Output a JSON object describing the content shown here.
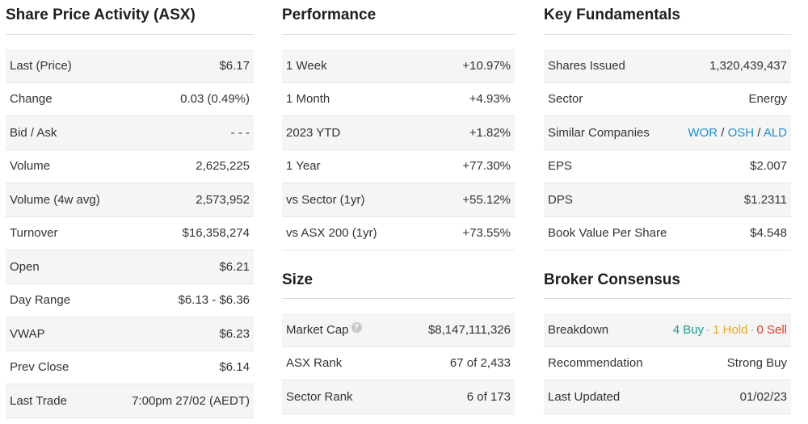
{
  "share_price": {
    "title": "Share Price Activity (ASX)",
    "rows": [
      {
        "label": "Last (Price)",
        "value": "$6.17"
      },
      {
        "label": "Change",
        "value": "0.03 (0.49%)"
      },
      {
        "label": "Bid / Ask",
        "value": "- - -"
      },
      {
        "label": "Volume",
        "value": "2,625,225"
      },
      {
        "label": "Volume (4w avg)",
        "value": "2,573,952"
      },
      {
        "label": "Turnover",
        "value": "$16,358,274"
      },
      {
        "label": "Open",
        "value": "$6.21"
      },
      {
        "label": "Day Range",
        "value": "$6.13 - $6.36"
      },
      {
        "label": "VWAP",
        "value": "$6.23"
      },
      {
        "label": "Prev Close",
        "value": "$6.14"
      },
      {
        "label": "Last Trade",
        "value": "7:00pm 27/02 (AEDT)"
      }
    ]
  },
  "performance": {
    "title": "Performance",
    "rows": [
      {
        "label": "1 Week",
        "value": "+10.97%"
      },
      {
        "label": "1 Month",
        "value": "+4.93%"
      },
      {
        "label": "2023 YTD",
        "value": "+1.82%"
      },
      {
        "label": "1 Year",
        "value": "+77.30%"
      },
      {
        "label": "vs Sector (1yr)",
        "value": "+55.12%"
      },
      {
        "label": "vs ASX 200 (1yr)",
        "value": "+73.55%"
      }
    ]
  },
  "size": {
    "title": "Size",
    "help_icon": "?",
    "rows": [
      {
        "label": "Market Cap",
        "value": "$8,147,111,326"
      },
      {
        "label": "ASX Rank",
        "value": "67 of 2,433"
      },
      {
        "label": "Sector Rank",
        "value": "6 of 173"
      }
    ]
  },
  "fundamentals": {
    "title": "Key Fundamentals",
    "rows": [
      {
        "label": "Shares Issued",
        "value": "1,320,439,437"
      },
      {
        "label": "Sector",
        "value": "Energy"
      },
      {
        "label": "Similar Companies",
        "companies": [
          "WOR",
          "OSH",
          "ALD"
        ],
        "separator": "/"
      },
      {
        "label": "EPS",
        "value": "$2.007"
      },
      {
        "label": "DPS",
        "value": "$1.2311"
      },
      {
        "label": "Book Value Per Share",
        "value": "$4.548"
      }
    ]
  },
  "broker": {
    "title": "Broker Consensus",
    "rows": [
      {
        "label": "Breakdown",
        "buy": "4 Buy",
        "hold": "1 Hold",
        "sell": "0 Sell",
        "dot": "·"
      },
      {
        "label": "Recommendation",
        "value": "Strong Buy"
      },
      {
        "label": "Last Updated",
        "value": "01/02/23"
      }
    ]
  },
  "colors": {
    "positive": "#1a9e8f",
    "link": "#1d8fd6",
    "hold": "#e5a81d",
    "sell": "#e0392b"
  }
}
